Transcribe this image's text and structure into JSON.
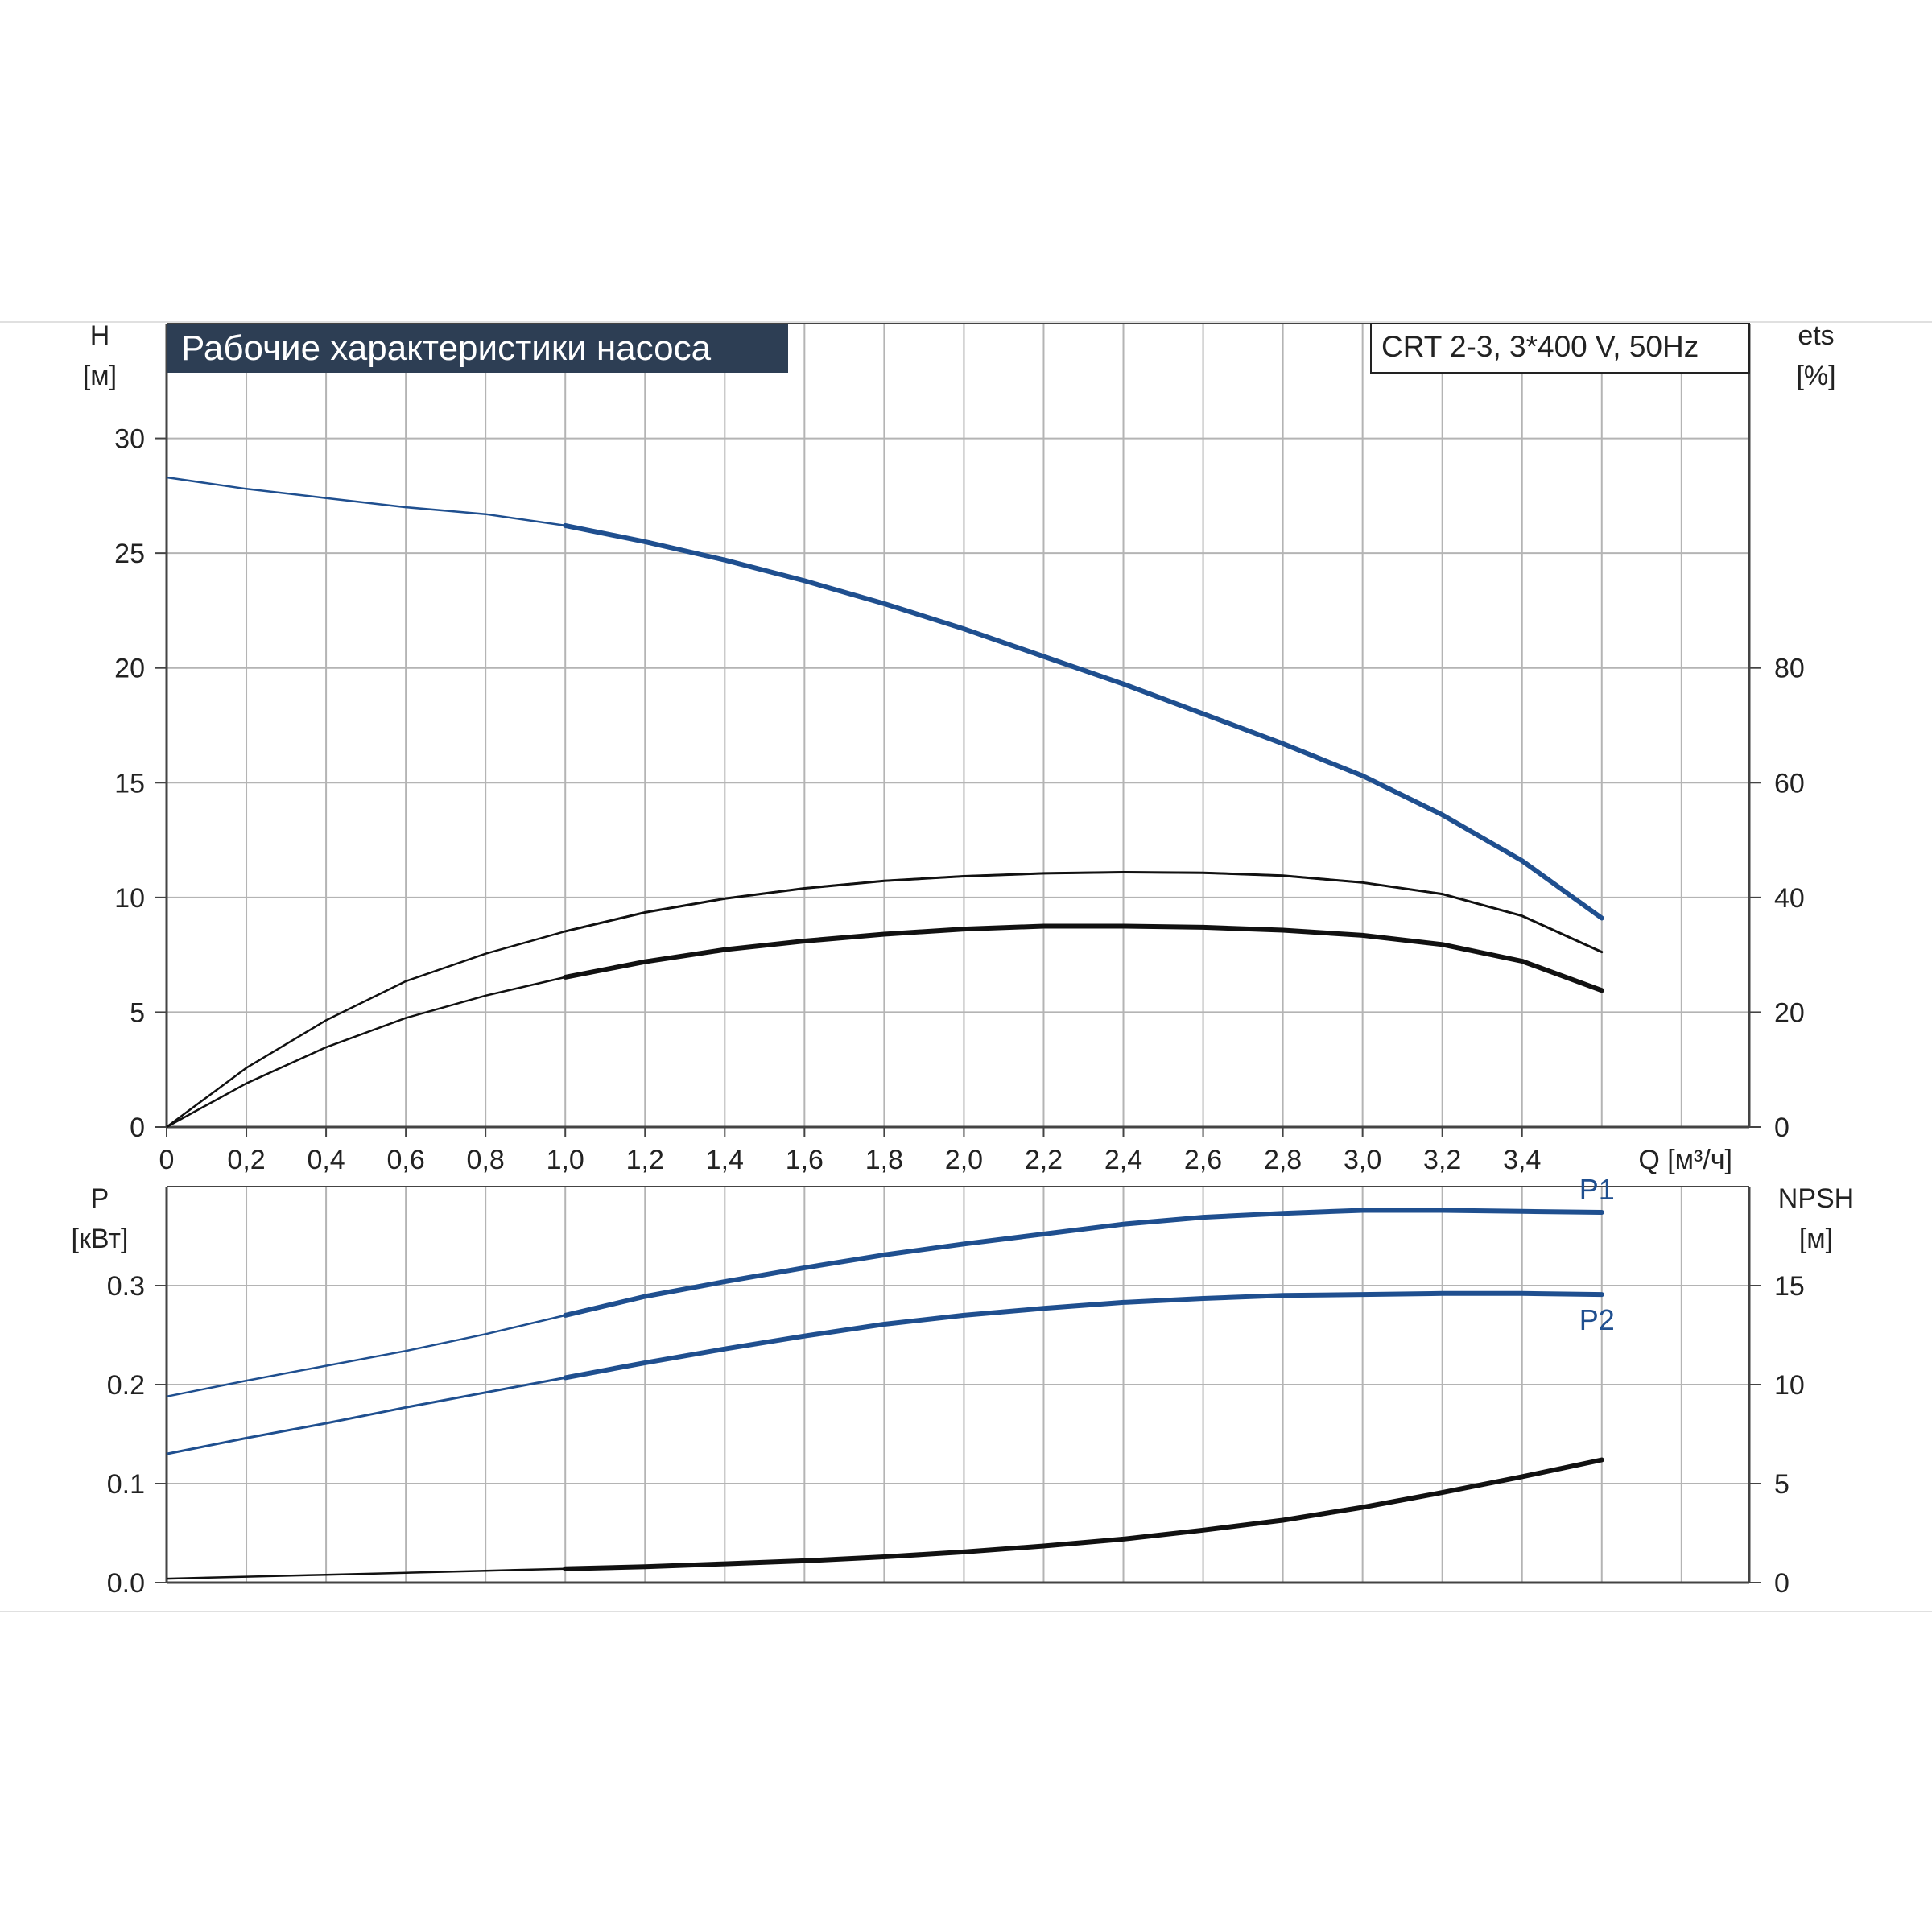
{
  "title": "Рабочие характеристики насоса",
  "pump_model": "CRT 2-3, 3*400 V, 50Hz",
  "colors": {
    "primary_curve": "#1f4f8f",
    "black_curve": "#111111",
    "title_bg": "#2d3e54",
    "grid": "#b4b4b4",
    "axis": "#444444"
  },
  "chart_data": [
    {
      "type": "line",
      "title": "Рабочие характеристики насоса",
      "xlabel": "Q [м³/ч]",
      "ylabel": [
        "H",
        "[м]"
      ],
      "ylabel_right": [
        "ets",
        "[%]"
      ],
      "xlim": [
        0,
        3.97
      ],
      "ylim": [
        0,
        35
      ],
      "ylim_right": [
        0,
        140
      ],
      "x_ticks": [
        "0",
        "0,2",
        "0,4",
        "0,6",
        "0,8",
        "1,0",
        "1,2",
        "1,4",
        "1,6",
        "1,8",
        "2,0",
        "2,2",
        "2,4",
        "2,6",
        "2,8",
        "3,0",
        "3,2",
        "3,4"
      ],
      "x_tick_values": [
        0,
        0.2,
        0.4,
        0.6,
        0.8,
        1.0,
        1.2,
        1.4,
        1.6,
        1.8,
        2.0,
        2.2,
        2.4,
        2.6,
        2.8,
        3.0,
        3.2,
        3.4
      ],
      "y_ticks": [
        0,
        5,
        10,
        15,
        20,
        25,
        30
      ],
      "y_ticks_right": [
        0,
        20,
        40,
        60,
        80
      ],
      "grid": true,
      "series": [
        {
          "axis": "left",
          "color": "#1f4f8f",
          "x": [
            0,
            0.2,
            0.4,
            0.6,
            0.8,
            1.0,
            1.2,
            1.4,
            1.6,
            1.8,
            2.0,
            2.2,
            2.4,
            2.6,
            2.8,
            3.0,
            3.2,
            3.4,
            3.6
          ],
          "y": [
            28.3,
            27.8,
            27.4,
            27.0,
            26.7,
            26.2,
            25.5,
            24.7,
            23.8,
            22.8,
            21.7,
            20.5,
            19.3,
            18.0,
            16.7,
            15.3,
            13.6,
            11.6,
            9.1
          ]
        },
        {
          "axis": "right",
          "color": "#111111",
          "x": [
            0,
            0.2,
            0.4,
            0.6,
            0.8,
            1.0,
            1.2,
            1.4,
            1.6,
            1.8,
            2.0,
            2.2,
            2.4,
            2.6,
            2.8,
            3.0,
            3.2,
            3.4,
            3.6
          ],
          "y": [
            0,
            10.3,
            18.6,
            25.4,
            30.2,
            34.1,
            37.4,
            39.8,
            41.6,
            42.9,
            43.7,
            44.2,
            44.4,
            44.3,
            43.8,
            42.6,
            40.6,
            36.8,
            30.5
          ]
        },
        {
          "axis": "right",
          "color": "#111111",
          "x": [
            0,
            0.2,
            0.4,
            0.6,
            0.8,
            1.0,
            1.2,
            1.4,
            1.6,
            1.8,
            2.0,
            2.2,
            2.4,
            2.6,
            2.8,
            3.0,
            3.2,
            3.4,
            3.6
          ],
          "y": [
            0,
            7.6,
            13.9,
            19.0,
            22.9,
            26.1,
            28.8,
            30.9,
            32.4,
            33.6,
            34.5,
            35.0,
            35.0,
            34.8,
            34.3,
            33.4,
            31.8,
            28.9,
            23.8
          ]
        }
      ]
    },
    {
      "type": "line",
      "xlabel": "",
      "ylabel": [
        "P",
        "[кВт]"
      ],
      "ylabel_right": [
        "NPSH",
        "[м]"
      ],
      "xlim": [
        0,
        3.97
      ],
      "ylim": [
        0,
        0.4
      ],
      "ylim_right": [
        0,
        20
      ],
      "y_ticks": [
        "0.0",
        "0.1",
        "0.2",
        "0.3"
      ],
      "y_tick_values": [
        0,
        0.1,
        0.2,
        0.3
      ],
      "y_ticks_right": [
        0,
        5,
        10,
        15
      ],
      "grid": true,
      "series": [
        {
          "name": "P1",
          "axis": "left",
          "color": "#1f4f8f",
          "x": [
            0,
            0.2,
            0.4,
            0.6,
            0.8,
            1.0,
            1.2,
            1.4,
            1.6,
            1.8,
            2.0,
            2.2,
            2.4,
            2.6,
            2.8,
            3.0,
            3.2,
            3.4,
            3.6
          ],
          "y": [
            0.188,
            0.204,
            0.219,
            0.234,
            0.251,
            0.27,
            0.289,
            0.304,
            0.318,
            0.331,
            0.342,
            0.352,
            0.362,
            0.369,
            0.373,
            0.376,
            0.376,
            0.375,
            0.374
          ]
        },
        {
          "name": "P2",
          "axis": "left",
          "color": "#1f4f8f",
          "x": [
            0,
            0.2,
            0.4,
            0.6,
            0.8,
            1.0,
            1.2,
            1.4,
            1.6,
            1.8,
            2.0,
            2.2,
            2.4,
            2.6,
            2.8,
            3.0,
            3.2,
            3.4,
            3.6
          ],
          "y": [
            0.13,
            0.146,
            0.161,
            0.177,
            0.192,
            0.207,
            0.222,
            0.236,
            0.249,
            0.261,
            0.27,
            0.277,
            0.283,
            0.287,
            0.29,
            0.291,
            0.292,
            0.292,
            0.291
          ]
        },
        {
          "name": "NPSH",
          "axis": "right",
          "color": "#111111",
          "x": [
            0,
            0.2,
            0.4,
            0.6,
            0.8,
            1.0,
            1.2,
            1.4,
            1.6,
            1.8,
            2.0,
            2.2,
            2.4,
            2.6,
            2.8,
            3.0,
            3.2,
            3.4,
            3.6
          ],
          "y": [
            0.2,
            0.3,
            0.4,
            0.5,
            0.6,
            0.7,
            0.8,
            0.95,
            1.1,
            1.3,
            1.55,
            1.85,
            2.2,
            2.65,
            3.15,
            3.8,
            4.55,
            5.35,
            6.2
          ]
        }
      ]
    }
  ]
}
